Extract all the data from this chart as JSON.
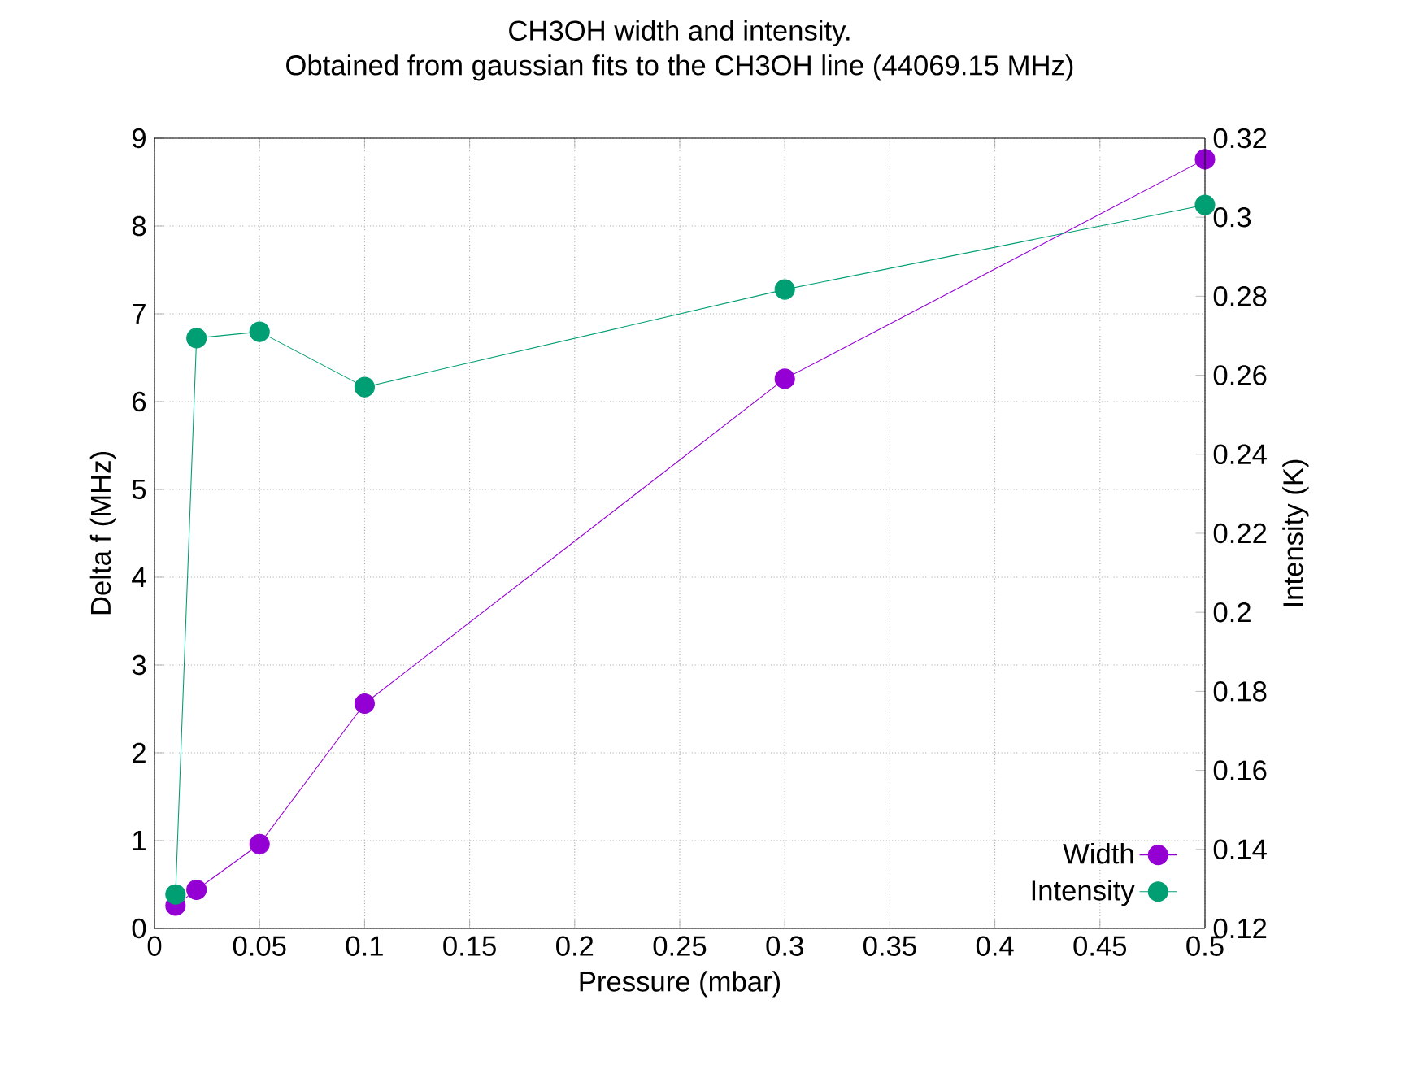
{
  "chart_data": {
    "type": "line",
    "title": "CH3OH width and intensity.",
    "subtitle": "Obtained from gaussian fits to the CH3OH line (44069.15 MHz)",
    "xlabel": "Pressure (mbar)",
    "ylabel": "Delta f (MHz)",
    "y2label": "Intensity (K)",
    "x": [
      0.01,
      0.02,
      0.05,
      0.1,
      0.3,
      0.5
    ],
    "series": [
      {
        "name": "Width",
        "color": "#9400d3",
        "values": [
          0.26,
          0.44,
          0.96,
          2.56,
          6.26,
          8.76
        ]
      },
      {
        "name": "Intensity",
        "color": "#009e73",
        "axis": "y2",
        "values": [
          0.1286,
          0.2694,
          0.271,
          0.257,
          0.2817,
          0.3031
        ]
      }
    ],
    "xlim": [
      0,
      0.5
    ],
    "xticks": [
      0,
      0.05,
      0.1,
      0.15,
      0.2,
      0.25,
      0.3,
      0.35,
      0.4,
      0.45,
      0.5
    ],
    "ylim": [
      0,
      9
    ],
    "yticks": [
      0,
      1,
      2,
      3,
      4,
      5,
      6,
      7,
      8,
      9
    ],
    "y2lim": [
      0.12,
      0.32
    ],
    "y2ticks": [
      0.12,
      0.14,
      0.16,
      0.18,
      0.2,
      0.22,
      0.24,
      0.26,
      0.28,
      0.3,
      0.32
    ],
    "grid": true,
    "legend": "bottom right",
    "marker": "circle",
    "line_style": "solid"
  }
}
